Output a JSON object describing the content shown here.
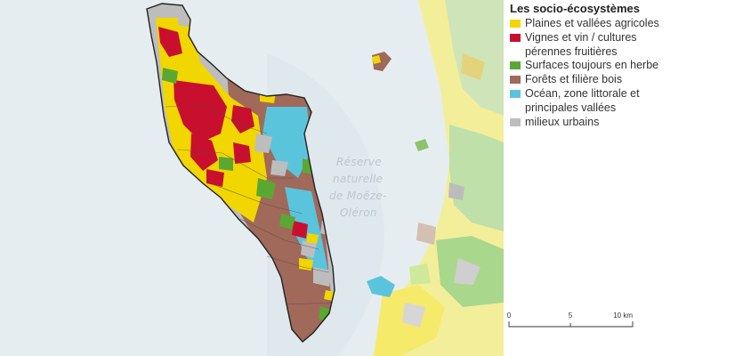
{
  "map": {
    "reserve_label": [
      "Réserve",
      "naturelle",
      "de Moëze-",
      "Oléron"
    ]
  },
  "legend": {
    "title": "Les socio-écosystèmes",
    "items": [
      {
        "label": "Plaines et vallées agricoles",
        "color": "#f2d600"
      },
      {
        "label": "Vignes et vin / cultures pérennes fruitières",
        "color": "#c8102e"
      },
      {
        "label": "Surfaces toujours en herbe",
        "color": "#5aa832"
      },
      {
        "label": "Forêts et filière bois",
        "color": "#a0695a"
      },
      {
        "label": "Océan, zone littorale et principales vallées",
        "color": "#5bc4dd"
      },
      {
        "label": "milieux urbains",
        "color": "#bdbdbd"
      }
    ]
  },
  "scale": {
    "ticks": [
      "0",
      "5",
      "10 km"
    ]
  }
}
